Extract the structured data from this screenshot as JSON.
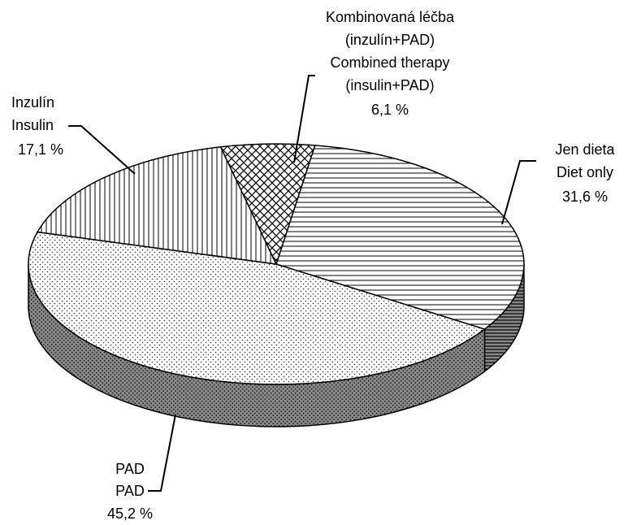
{
  "chart_data": {
    "type": "pie3d",
    "categories": [
      [
        "Jen dieta",
        "Diet only"
      ],
      [
        "PAD",
        "PAD"
      ],
      [
        "Inzulín",
        "Insulin"
      ],
      [
        "Kombinovaná léčba",
        "(inzulín+PAD)",
        "Combined therapy",
        "(insulin+PAD)"
      ]
    ],
    "values": [
      31.6,
      45.2,
      17.1,
      6.1
    ],
    "value_labels": [
      "31,6 %",
      "45,2 %",
      "17,1 %",
      "6,1 %"
    ]
  }
}
